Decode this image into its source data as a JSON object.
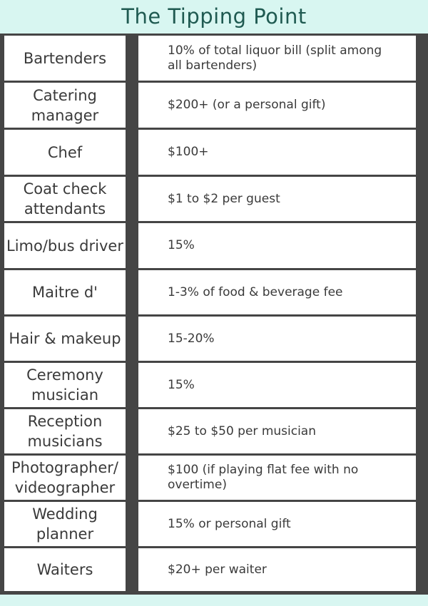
{
  "title": "The Tipping Point",
  "colors": {
    "background": "#d8f6f1",
    "title": "#1f5a51",
    "grid": "#454545"
  },
  "rows": [
    {
      "role": "Bartenders",
      "tip": "10% of total liquor bill (split among all bartenders)"
    },
    {
      "role": "Catering manager",
      "tip": "$200+ (or a personal gift)"
    },
    {
      "role": "Chef",
      "tip": "$100+"
    },
    {
      "role": "Coat check attendants",
      "tip": "$1 to $2 per guest"
    },
    {
      "role": "Limo/bus driver",
      "tip": "15%"
    },
    {
      "role": "Maitre d'",
      "tip": "1-3% of food & beverage fee"
    },
    {
      "role": "Hair & makeup",
      "tip": "15-20%"
    },
    {
      "role": "Ceremony musician",
      "tip": "15%"
    },
    {
      "role": "Reception musicians",
      "tip": "$25 to $50 per musician"
    },
    {
      "role": "Photographer/ videographer",
      "tip": "$100 (if playing flat fee with no overtime)"
    },
    {
      "role": "Wedding planner",
      "tip": "15% or personal gift"
    },
    {
      "role": "Waiters",
      "tip": "$20+ per waiter"
    }
  ]
}
